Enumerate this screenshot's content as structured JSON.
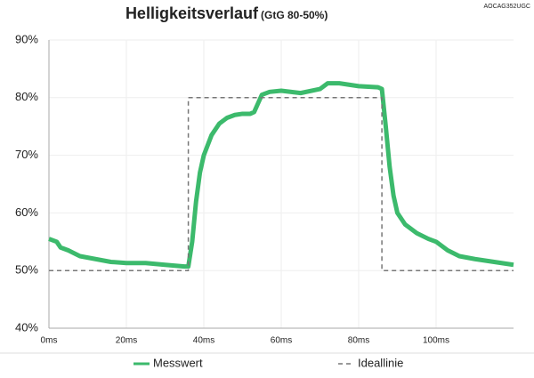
{
  "chart_data": {
    "type": "line",
    "title": "Helligkeitsverlauf",
    "subtitle": "(GtG 80-50%)",
    "annotation": "AOCAG352UGC",
    "xlim": [
      0,
      120
    ],
    "ylim": [
      40,
      90
    ],
    "xticks": [
      {
        "value": 0,
        "label": "0ms"
      },
      {
        "value": 20,
        "label": "20ms"
      },
      {
        "value": 40,
        "label": "40ms"
      },
      {
        "value": 60,
        "label": "60ms"
      },
      {
        "value": 80,
        "label": "80ms"
      },
      {
        "value": 100,
        "label": "100ms"
      }
    ],
    "yticks": [
      {
        "value": 40,
        "label": "40%"
      },
      {
        "value": 50,
        "label": "50%"
      },
      {
        "value": 60,
        "label": "60%"
      },
      {
        "value": 70,
        "label": "70%"
      },
      {
        "value": 80,
        "label": "80%"
      },
      {
        "value": 90,
        "label": "90%"
      }
    ],
    "grid": true,
    "legend": "bottom",
    "series": [
      {
        "name": "Messwert",
        "color": "#3cba6c",
        "dashed": false,
        "x": [
          0,
          2,
          3,
          5,
          8,
          12,
          16,
          20,
          25,
          30,
          35,
          36,
          37,
          38,
          39,
          40,
          42,
          44,
          46,
          48,
          50,
          52,
          53,
          54,
          55,
          57,
          60,
          65,
          70,
          72,
          75,
          80,
          85,
          86,
          87,
          88,
          89,
          90,
          92,
          95,
          98,
          100,
          103,
          106,
          110,
          115,
          120
        ],
        "values": [
          55.5,
          55,
          54,
          53.5,
          52.5,
          52,
          51.5,
          51.3,
          51.3,
          51,
          50.7,
          50.7,
          55,
          62,
          67,
          70,
          73.5,
          75.5,
          76.5,
          77,
          77.2,
          77.2,
          77.5,
          79,
          80.5,
          81,
          81.2,
          80.8,
          81.5,
          82.5,
          82.5,
          82,
          81.8,
          81.5,
          75,
          68,
          63,
          60,
          58,
          56.5,
          55.5,
          55,
          53.5,
          52.5,
          52,
          51.5,
          51
        ]
      },
      {
        "name": "Ideallinie",
        "color": "#777777",
        "dashed": true,
        "x": [
          0,
          36,
          36,
          86,
          86,
          120
        ],
        "values": [
          50,
          50,
          80,
          80,
          50,
          50
        ]
      }
    ]
  }
}
